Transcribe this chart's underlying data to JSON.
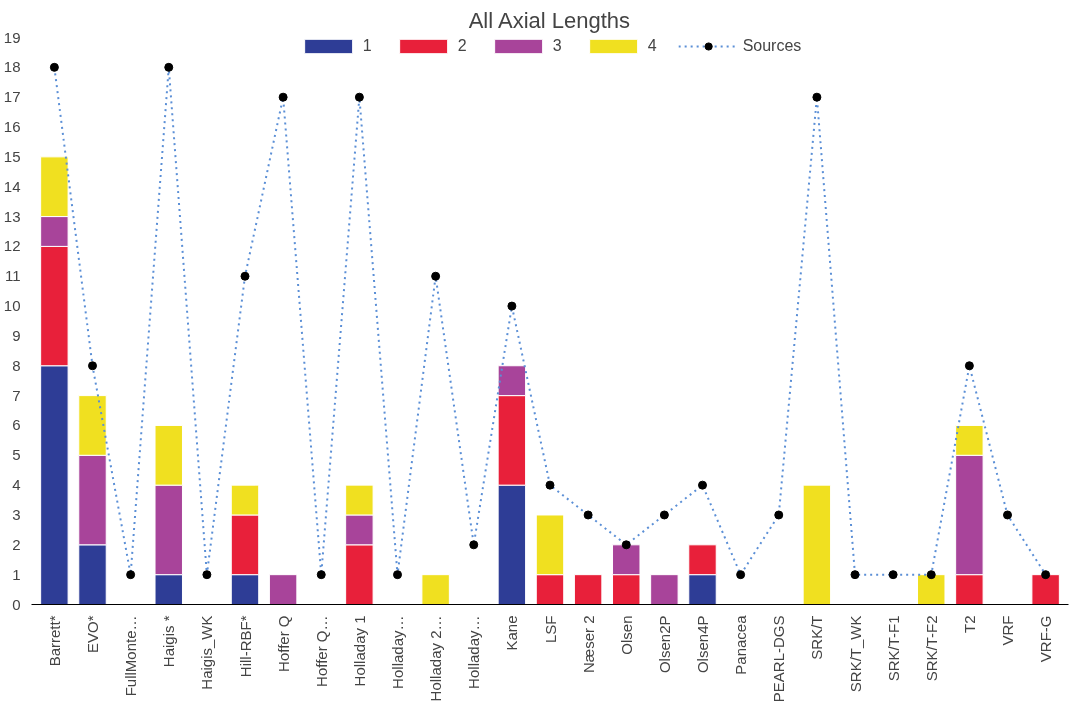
{
  "chart_data": {
    "type": "bar",
    "title": "All Axial Lengths",
    "stacked": true,
    "categories": [
      "Barrett*",
      "EVO*",
      "FullMonte…",
      "Haigis *",
      "Haigis_WK",
      "Hill-RBF*",
      "Hoffer Q",
      "Hoffer Q…",
      "Holladay 1",
      "Holladay…",
      "Holladay 2…",
      "Holladay…",
      "Kane",
      "LSF",
      "Næser 2",
      "Olsen",
      "Olsen2P",
      "Olsen4P",
      "Panacea",
      "PEARL-DGS",
      "SRK/T",
      "SRK/T_WK",
      "SRK/T-F1",
      "SRK/T-F2",
      "T2",
      "VRF",
      "VRF-G"
    ],
    "series": [
      {
        "name": "1",
        "color": "#2e3d96",
        "values": [
          8,
          2,
          null,
          1,
          null,
          1,
          null,
          null,
          null,
          null,
          null,
          null,
          4,
          null,
          null,
          null,
          null,
          1,
          null,
          null,
          null,
          null,
          null,
          null,
          null,
          null,
          null
        ]
      },
      {
        "name": "2",
        "color": "#e8203a",
        "values": [
          4,
          null,
          null,
          null,
          null,
          2,
          null,
          null,
          2,
          null,
          null,
          null,
          3,
          1,
          1,
          1,
          null,
          1,
          null,
          null,
          null,
          null,
          null,
          null,
          1,
          null,
          1
        ]
      },
      {
        "name": "3",
        "color": "#a8449a",
        "values": [
          1,
          3,
          null,
          3,
          null,
          null,
          1,
          null,
          1,
          null,
          null,
          null,
          1,
          null,
          null,
          1,
          1,
          null,
          null,
          null,
          null,
          null,
          null,
          null,
          4,
          null,
          null
        ]
      },
      {
        "name": "4",
        "color": "#f0e020",
        "values": [
          2,
          2,
          null,
          2,
          null,
          1,
          null,
          null,
          1,
          null,
          1,
          null,
          null,
          2,
          null,
          null,
          null,
          null,
          null,
          null,
          4,
          null,
          null,
          1,
          1,
          null,
          null
        ]
      },
      {
        "name": "Sources",
        "type": "line",
        "color": "#5b8fd6",
        "line_style": "dotted",
        "marker": "circle",
        "values": [
          18,
          8,
          1,
          18,
          1,
          11,
          17,
          1,
          17,
          1,
          11,
          2,
          10,
          4,
          3,
          2,
          3,
          4,
          1,
          3,
          17,
          1,
          1,
          1,
          8,
          3,
          1
        ]
      }
    ],
    "ylim": [
      0,
      19
    ],
    "yticks": [
      0,
      1,
      2,
      3,
      4,
      5,
      6,
      7,
      8,
      9,
      10,
      11,
      12,
      13,
      14,
      15,
      16,
      17,
      18,
      19
    ],
    "grid": false,
    "legend": "top"
  }
}
